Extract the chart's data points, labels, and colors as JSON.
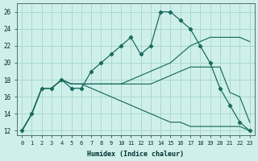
{
  "xlabel": "Humidex (Indice chaleur)",
  "background_color": "#cff0ea",
  "grid_color": "#a8d8d0",
  "line_color": "#1a6b60",
  "x": [
    0,
    1,
    2,
    3,
    4,
    5,
    6,
    7,
    8,
    9,
    10,
    11,
    12,
    13,
    14,
    15,
    16,
    17,
    18,
    19,
    20,
    21,
    22,
    23
  ],
  "y_main": [
    12,
    14,
    17,
    17,
    18,
    17,
    17,
    19,
    20,
    21,
    22,
    23,
    21,
    22,
    26,
    26,
    25,
    24,
    22,
    20,
    17,
    15,
    13,
    12
  ],
  "fan_start_x": 4,
  "fan_start_y": 17.5,
  "y_line_top": [
    12,
    14,
    17,
    17,
    18,
    17.5,
    17.5,
    17.5,
    17.5,
    17.5,
    17.5,
    18,
    18.5,
    19,
    19.5,
    20,
    21,
    22,
    22.5,
    23,
    23,
    23,
    23,
    22.5
  ],
  "y_line_mid": [
    12,
    14,
    17,
    17,
    18,
    17.5,
    17.5,
    17.5,
    17.5,
    17.5,
    17.5,
    17.5,
    17.5,
    17.5,
    18,
    18.5,
    19,
    19.5,
    19.5,
    19.5,
    19.5,
    16.5,
    16,
    13
  ],
  "y_line_bot": [
    12,
    14,
    17,
    17,
    18,
    17.5,
    17.5,
    17,
    16.5,
    16,
    15.5,
    15,
    14.5,
    14,
    13.5,
    13,
    13,
    12.5,
    12.5,
    12.5,
    12.5,
    12.5,
    12.5,
    12
  ],
  "ylim": [
    11.5,
    27
  ],
  "yticks": [
    12,
    14,
    16,
    18,
    20,
    22,
    24,
    26
  ],
  "xlim": [
    -0.5,
    23.5
  ],
  "xticks": [
    0,
    1,
    2,
    3,
    4,
    5,
    6,
    7,
    8,
    9,
    10,
    11,
    12,
    13,
    14,
    15,
    16,
    17,
    18,
    19,
    20,
    21,
    22,
    23
  ]
}
